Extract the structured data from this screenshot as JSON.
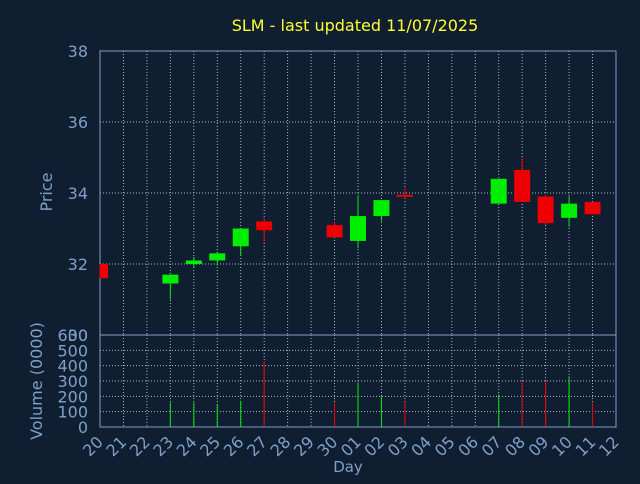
{
  "chart_data": {
    "type": "candlestick",
    "title": "SLM - last updated 11/07/2025",
    "price_panel": {
      "ylabel": "Price",
      "ylim": [
        30,
        38
      ],
      "y_ticks": [
        30,
        32,
        34,
        36,
        38
      ],
      "grid": true
    },
    "volume_panel": {
      "ylabel": "Volume (0000)",
      "ylim": [
        0,
        600
      ],
      "y_ticks": [
        0,
        100,
        200,
        300,
        400,
        500,
        600
      ],
      "grid": true
    },
    "xlabel": "Day",
    "x_ticks": [
      "20",
      "21",
      "22",
      "23",
      "24",
      "25",
      "26",
      "27",
      "28",
      "29",
      "30",
      "01",
      "02",
      "03",
      "04",
      "05",
      "06",
      "07",
      "08",
      "09",
      "10",
      "11",
      "12"
    ],
    "candles": [
      {
        "day": "20",
        "open": 32.0,
        "high": 32.0,
        "low": 31.6,
        "close": 31.6,
        "volume": 0
      },
      {
        "day": "23",
        "open": 31.45,
        "high": 31.7,
        "low": 31.0,
        "close": 31.7,
        "volume": 160
      },
      {
        "day": "24",
        "open": 32.0,
        "high": 32.2,
        "low": 31.9,
        "close": 32.1,
        "volume": 160
      },
      {
        "day": "25",
        "open": 32.1,
        "high": 32.35,
        "low": 31.95,
        "close": 32.3,
        "volume": 150
      },
      {
        "day": "26",
        "open": 32.5,
        "high": 33.0,
        "low": 32.25,
        "close": 33.0,
        "volume": 170
      },
      {
        "day": "27",
        "open": 33.2,
        "high": 33.3,
        "low": 32.6,
        "close": 32.95,
        "volume": 430
      },
      {
        "day": "30",
        "open": 33.1,
        "high": 33.2,
        "low": 32.75,
        "close": 32.75,
        "volume": 160
      },
      {
        "day": "01",
        "open": 32.65,
        "high": 33.95,
        "low": 32.45,
        "close": 33.35,
        "volume": 290
      },
      {
        "day": "02",
        "open": 33.35,
        "high": 33.8,
        "low": 33.2,
        "close": 33.8,
        "volume": 200
      },
      {
        "day": "03",
        "open": 33.95,
        "high": 34.15,
        "low": 33.85,
        "close": 33.9,
        "volume": 165
      },
      {
        "day": "07",
        "open": 33.7,
        "high": 34.4,
        "low": 33.7,
        "close": 34.4,
        "volume": 210
      },
      {
        "day": "08",
        "open": 34.65,
        "high": 35.0,
        "low": 33.75,
        "close": 33.75,
        "volume": 300
      },
      {
        "day": "09",
        "open": 33.9,
        "high": 33.95,
        "low": 33.1,
        "close": 33.15,
        "volume": 300
      },
      {
        "day": "10",
        "open": 33.3,
        "high": 33.9,
        "low": 33.05,
        "close": 33.7,
        "volume": 330
      },
      {
        "day": "11",
        "open": 33.75,
        "high": 33.75,
        "low": 33.4,
        "close": 33.4,
        "volume": 160
      }
    ],
    "colors": {
      "background": "#0f1e30",
      "axis_text": "#7fa0c8",
      "title": "#ffff33",
      "grid": "#b0b8c8",
      "up": "#00ee00",
      "down": "#ee0000",
      "axis_line": "#ffffff"
    }
  }
}
